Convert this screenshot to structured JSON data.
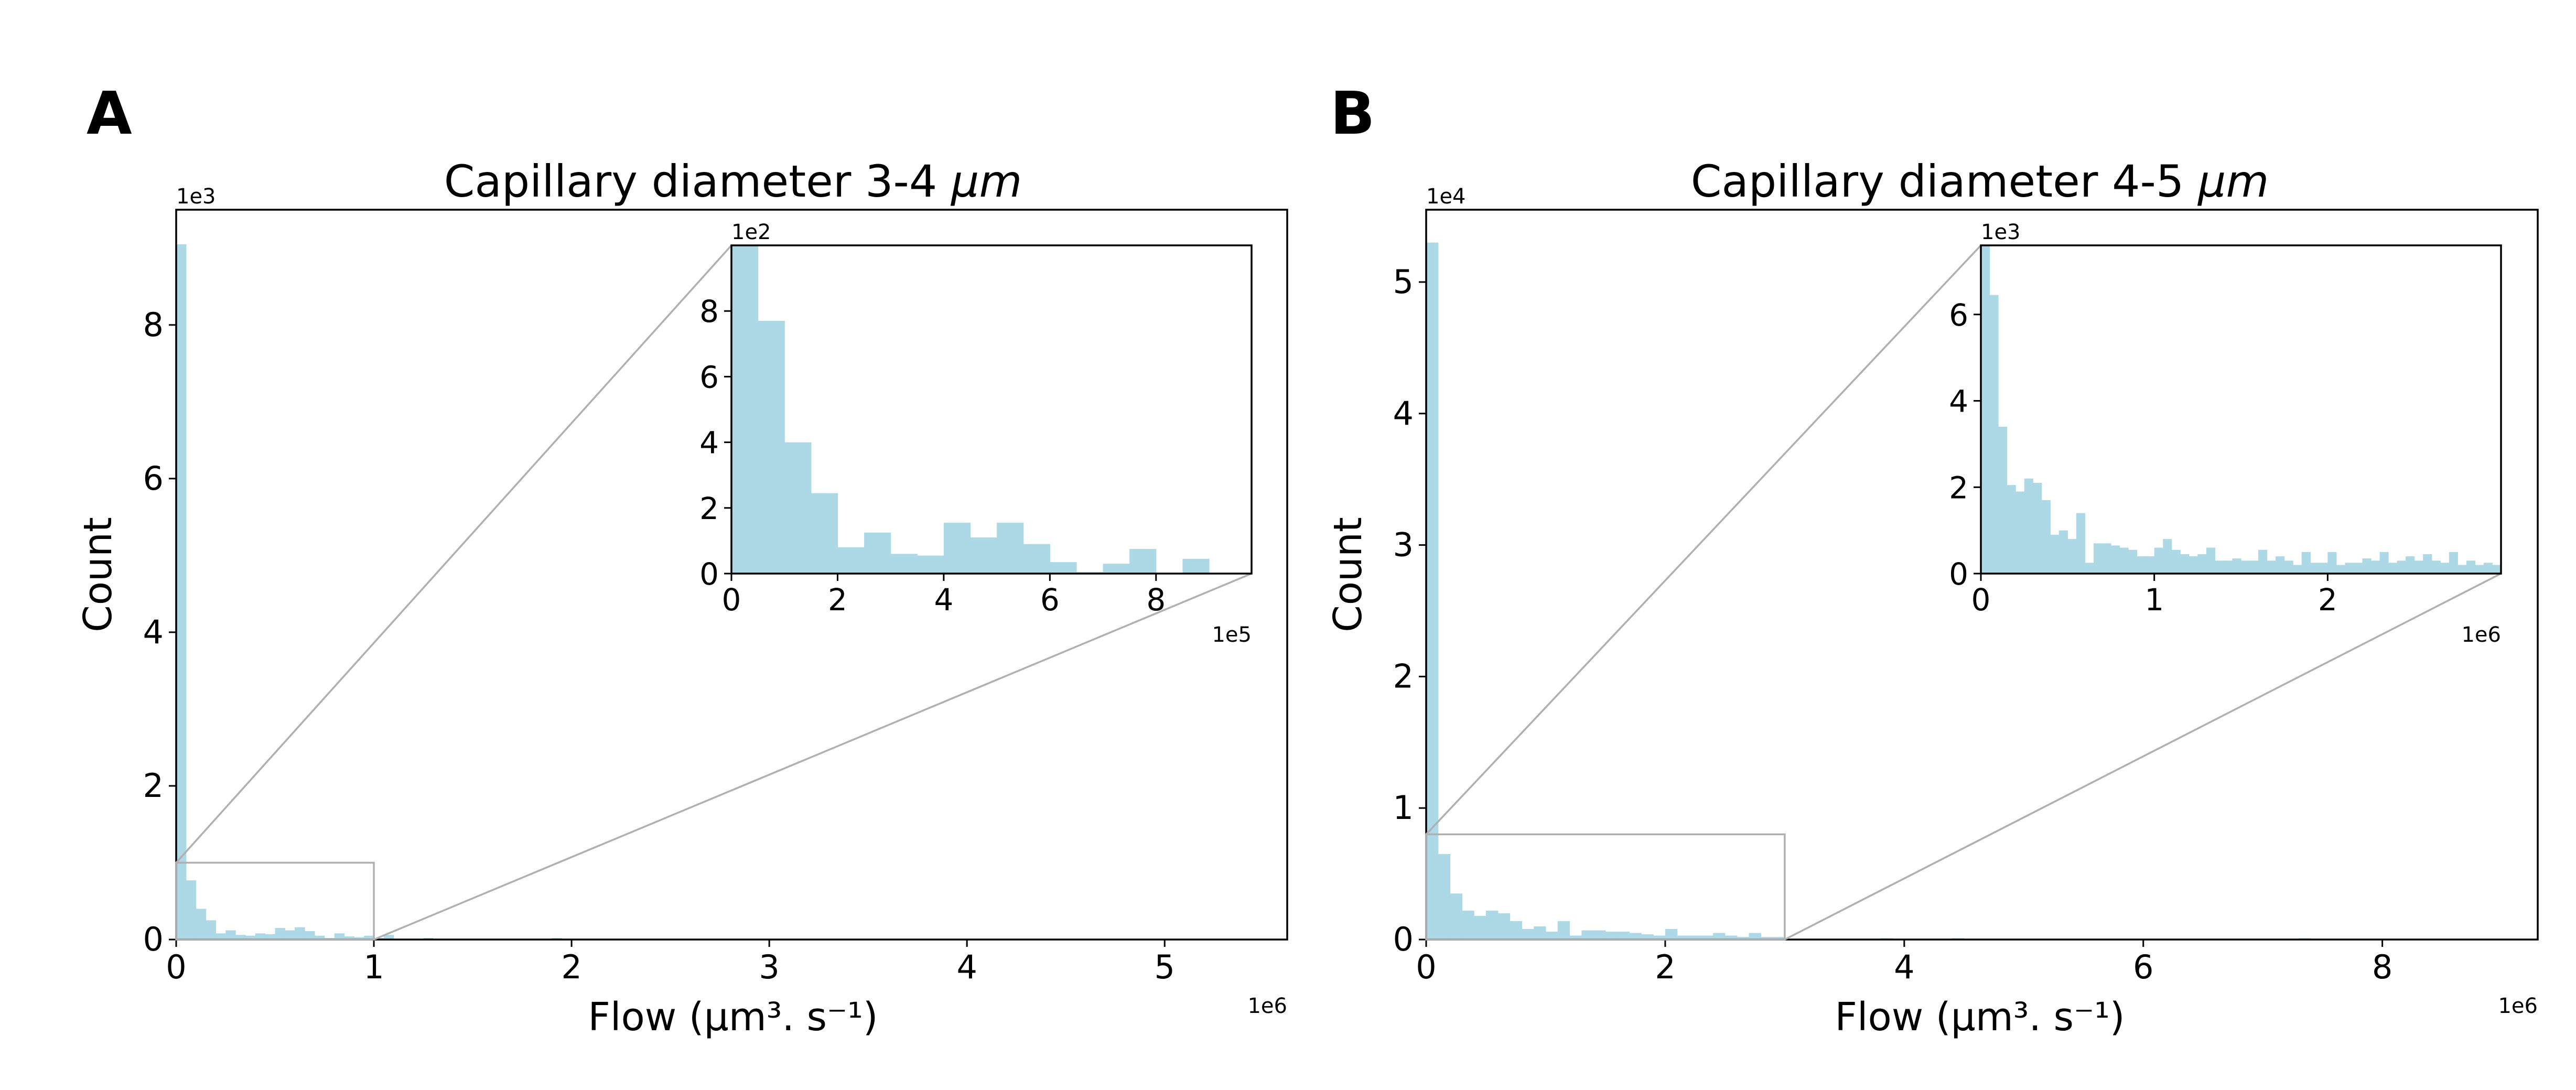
{
  "chart_data": [
    {
      "type": "bar",
      "panel": "A",
      "title_prefix": "Capillary diameter 3-4 ",
      "title_unit": "μm",
      "xlabel": "Flow (μm³. s⁻¹)",
      "ylabel": "Count",
      "x_offset": "1e6",
      "y_offset": "1e3",
      "xlim": [
        0,
        5.62
      ],
      "ylim": [
        0,
        9.5
      ],
      "xticks": [
        "0",
        "1",
        "2",
        "3",
        "4",
        "5"
      ],
      "yticks": [
        "0",
        "2",
        "4",
        "6",
        "8"
      ],
      "bin_width": 0.05,
      "values": [
        9.05,
        0.77,
        0.4,
        0.25,
        0.08,
        0.12,
        0.06,
        0.05,
        0.08,
        0.07,
        0.15,
        0.12,
        0.16,
        0.11,
        0.05,
        0.02,
        0.08,
        0.04,
        0.03,
        0.05,
        0.02,
        0.06,
        0.0,
        0.0,
        0.0,
        0.02,
        0.0,
        0.0,
        0.01,
        0.0,
        0.0,
        0.01,
        0.0,
        0.0,
        0.0,
        0.0,
        0.0,
        0.0,
        0.02,
        0.0,
        0.0,
        0.01,
        0.0,
        0.0,
        0.0,
        0.0,
        0.0,
        0.0,
        0.0,
        0.0,
        0.0,
        0.0,
        0.0,
        0.0,
        0.01,
        0.0
      ],
      "zoom_box": {
        "x": [
          0,
          1
        ],
        "y": [
          0,
          1
        ]
      },
      "inset": {
        "x_offset": "1e5",
        "y_offset": "1e2",
        "xlim": [
          0,
          9.8
        ],
        "ylim": [
          0,
          10
        ],
        "xticks": [
          "0",
          "2",
          "4",
          "6",
          "8"
        ],
        "yticks": [
          "0",
          "2",
          "4",
          "6",
          "8"
        ],
        "bin_width": 0.5,
        "values": [
          10.0,
          7.7,
          4.0,
          2.45,
          0.8,
          1.25,
          0.6,
          0.55,
          1.55,
          1.1,
          1.55,
          0.9,
          0.35,
          0.05,
          0.3,
          0.75,
          0.0,
          0.45
        ]
      }
    },
    {
      "type": "bar",
      "panel": "B",
      "title_prefix": "Capillary diameter 4-5 ",
      "title_unit": "μm",
      "xlabel": "Flow (μm³. s⁻¹)",
      "ylabel": "Count",
      "x_offset": "1e6",
      "y_offset": "1e4",
      "xlim": [
        0,
        9.3
      ],
      "ylim": [
        0,
        5.55
      ],
      "xticks": [
        "0",
        "2",
        "4",
        "6",
        "8"
      ],
      "yticks": [
        "0",
        "1",
        "2",
        "3",
        "4",
        "5"
      ],
      "bin_width": 0.1,
      "values": [
        5.3,
        0.65,
        0.35,
        0.22,
        0.18,
        0.22,
        0.2,
        0.14,
        0.08,
        0.1,
        0.06,
        0.14,
        0.03,
        0.07,
        0.07,
        0.06,
        0.06,
        0.05,
        0.04,
        0.03,
        0.08,
        0.03,
        0.03,
        0.03,
        0.05,
        0.03,
        0.02,
        0.05,
        0.02,
        0.02,
        0.0,
        0.0,
        0.0,
        0.0,
        0.0,
        0.0,
        0.0,
        0.0,
        0.01,
        0.0,
        0.0,
        0.0,
        0.0,
        0.0,
        0.01,
        0.0,
        0.0,
        0.0,
        0.0,
        0.0,
        0.0,
        0.0,
        0.0,
        0.0,
        0.0,
        0.0,
        0.0,
        0.0,
        0.0,
        0.0,
        0.0,
        0.0,
        0.0,
        0.0,
        0.0,
        0.0,
        0.0,
        0.0,
        0.0,
        0.0,
        0.0,
        0.0,
        0.0,
        0.01,
        0.0,
        0.0,
        0.0,
        0.0,
        0.0,
        0.0,
        0.0,
        0.0,
        0.0,
        0.0,
        0.0,
        0.0,
        0.0,
        0.0,
        0.0,
        0.0,
        0.0,
        0.0,
        0.0
      ],
      "zoom_box": {
        "x": [
          0,
          3
        ],
        "y": [
          0,
          0.8
        ]
      },
      "inset": {
        "x_offset": "1e6",
        "y_offset": "1e3",
        "xlim": [
          0,
          3
        ],
        "ylim": [
          0,
          7.6
        ],
        "xticks": [
          "0",
          "1",
          "2"
        ],
        "yticks": [
          "0",
          "2",
          "4",
          "6"
        ],
        "bin_width": 0.1,
        "values_per_half_bin": true,
        "values": [
          7.6,
          6.45,
          3.4,
          2.05,
          1.9,
          2.2,
          2.1,
          1.7,
          0.9,
          1.0,
          0.8,
          1.4,
          0.25,
          0.7,
          0.7,
          0.65,
          0.6,
          0.55,
          0.4,
          0.4,
          0.6,
          0.8,
          0.55,
          0.45,
          0.4,
          0.45,
          0.6,
          0.3,
          0.3,
          0.35,
          0.3,
          0.3,
          0.55,
          0.3,
          0.4,
          0.3,
          0.2,
          0.5,
          0.25,
          0.25,
          0.5,
          0.2,
          0.25,
          0.25,
          0.35,
          0.3,
          0.5,
          0.25,
          0.3,
          0.4,
          0.3,
          0.45,
          0.3,
          0.25,
          0.5,
          0.2,
          0.3,
          0.2,
          0.25,
          0.2
        ]
      }
    }
  ]
}
